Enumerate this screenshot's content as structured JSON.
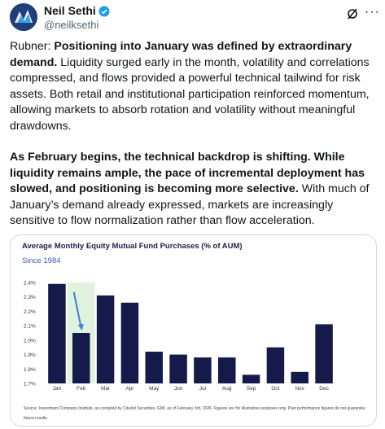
{
  "author": {
    "name": "Neil Sethi",
    "handle": "@neilksethi",
    "avatar": "NS-logo",
    "verified_icon": "verified-badge-icon"
  },
  "header_icons": {
    "grok": "grok-icon",
    "more": "more-icon",
    "more_glyph": "···"
  },
  "post": {
    "p1_a": "Rubner: ",
    "p1_b": "Positioning into January was defined by extraordinary demand.",
    "p1_c": " Liquidity surged early in the month, volatility and correlations compressed, and flows provided a powerful technical tailwind for risk assets. Both retail and institutional participation reinforced momentum, allowing markets to absorb rotation and volatility without meaningful drawdowns.",
    "p2_a": "As February begins, the technical backdrop is shifting. While liquidity remains ample, the pace of incremental deployment has slowed, and positioning is becoming more selective.",
    "p2_b": " With much of January’s demand already expressed, markets are increasingly sensitive to flow normalization rather than flow acceleration."
  },
  "chart_data": {
    "type": "bar",
    "title": "Average Monthly Equity Mutual Fund Purchases (% of AUM)",
    "subtitle": "Since 1984",
    "categories": [
      "Jan",
      "Feb",
      "Mar",
      "Apr",
      "May",
      "Jun",
      "Jul",
      "Aug",
      "Sep",
      "Oct",
      "Nov",
      "Dec"
    ],
    "values": [
      2.39,
      2.05,
      2.31,
      2.26,
      1.92,
      1.9,
      1.88,
      1.88,
      1.76,
      1.95,
      1.78,
      2.11
    ],
    "ylim": [
      1.7,
      2.4
    ],
    "yticks": [
      "1.7%",
      "1.8%",
      "1.9%",
      "2.0%",
      "2.1%",
      "2.2%",
      "2.3%",
      "2.4%"
    ],
    "ytick_values": [
      1.7,
      1.8,
      1.9,
      2.0,
      2.1,
      2.2,
      2.3,
      2.4
    ],
    "highlight_category": "Feb",
    "colors": {
      "bar": "#141a4a",
      "highlight": "#dff3df",
      "arrow": "#3f7fd6"
    },
    "source": "Source: Investment Company Institute, as compiled by Citadel Securities, GMI, as of February 3rd, 2026. Figures are for illustrative purposes only. Past performance figures do not guarantee future results"
  }
}
